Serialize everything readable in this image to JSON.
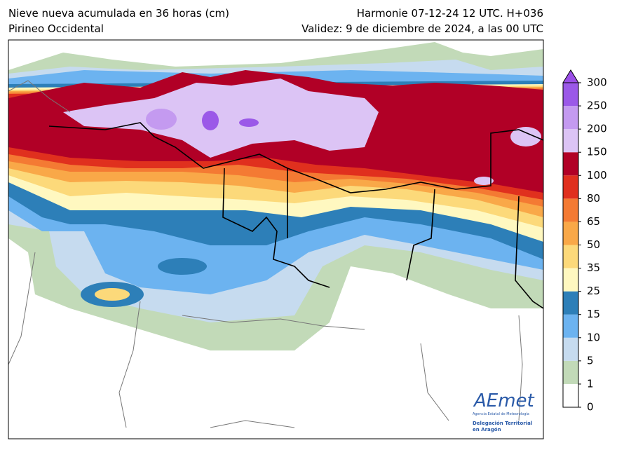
{
  "header": {
    "title_left": "Nieve nueva acumulada en 36 horas (cm)",
    "subtitle_left": "Pirineo Occidental",
    "title_right": "Harmonie 07-12-24 12 UTC. H+036",
    "subtitle_right": "Validez: 9 de diciembre de 2024, a las 00 UTC"
  },
  "colorbar": {
    "levels": [
      0,
      1,
      5,
      10,
      15,
      25,
      35,
      50,
      65,
      80,
      100,
      150,
      200,
      250,
      300
    ],
    "colors": [
      "#ffffff",
      "#c2dab8",
      "#c6dbef",
      "#6cb3f0",
      "#2d7fb8",
      "#fff8c0",
      "#fcd97a",
      "#f9a848",
      "#f47a33",
      "#e0301e",
      "#b10026",
      "#dcc4f5",
      "#c49af0",
      "#9b59e8"
    ],
    "extend_color": "#9b4fe8"
  },
  "logo": {
    "name": "AEmet",
    "agency": "Agencia Estatal de Meteorología",
    "line1": "Delegación Territorial",
    "line2": "en Aragón"
  }
}
